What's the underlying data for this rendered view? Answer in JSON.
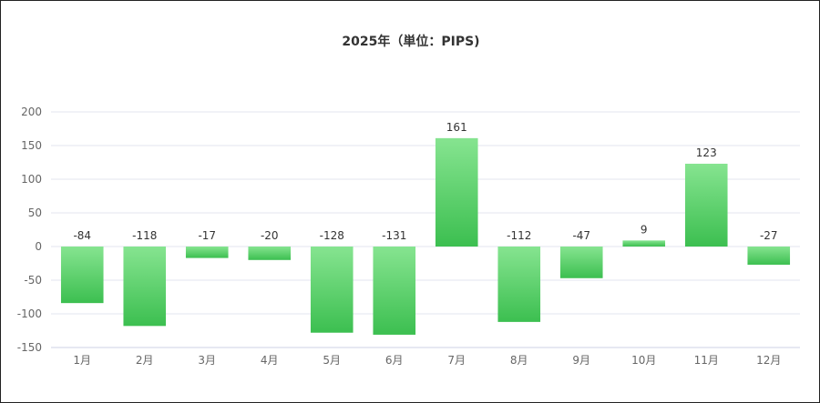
{
  "chart_data": {
    "type": "bar",
    "title": "2025年（単位：PIPS)",
    "categories": [
      "1月",
      "2月",
      "3月",
      "4月",
      "5月",
      "6月",
      "7月",
      "8月",
      "9月",
      "10月",
      "11月",
      "12月"
    ],
    "values": [
      -84,
      -118,
      -17,
      -20,
      -128,
      -131,
      161,
      -112,
      -47,
      9,
      123,
      -27
    ],
    "ylim": [
      -150,
      200
    ],
    "yticks": [
      200,
      150,
      100,
      50,
      0,
      -50,
      -100,
      -150
    ],
    "grid": true,
    "legend": "none",
    "colors": {
      "bar_top": "#86e490",
      "bar_bottom": "#3cbf50",
      "grid": "#e3e6ef",
      "axis": "#ccd2e6"
    }
  }
}
